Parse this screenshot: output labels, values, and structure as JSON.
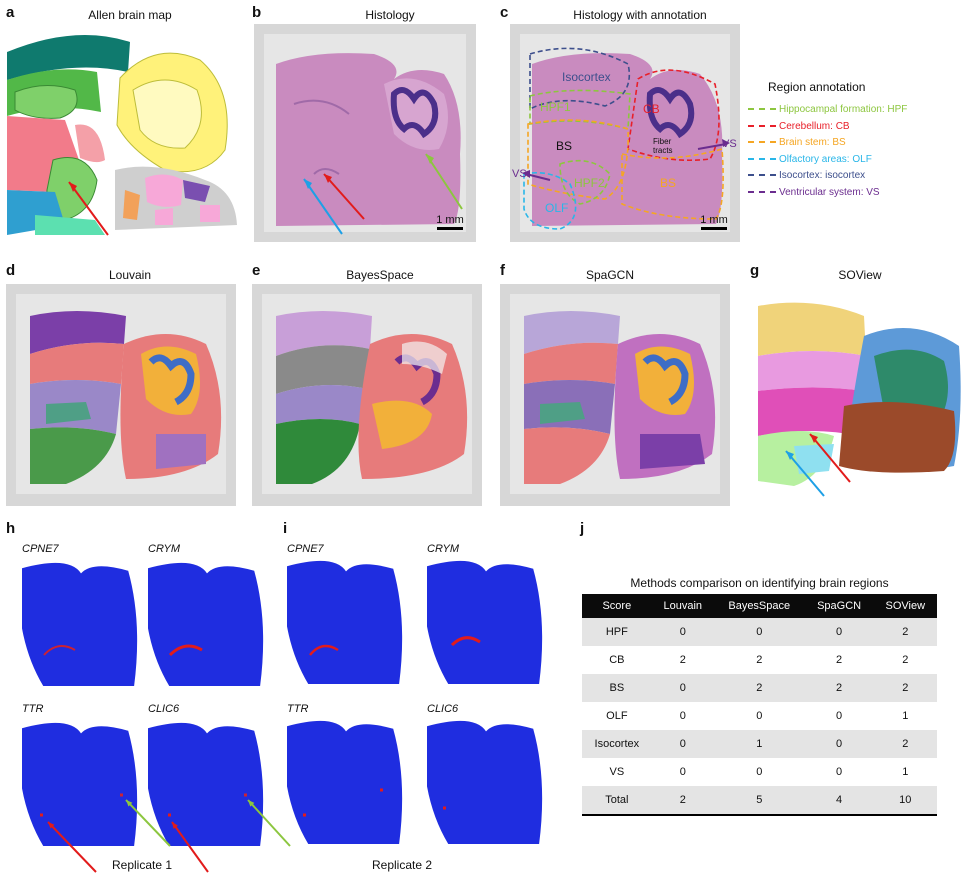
{
  "panels": {
    "a": {
      "letter": "a",
      "title": "Allen brain map"
    },
    "b": {
      "letter": "b",
      "title": "Histology",
      "scale": "1 mm"
    },
    "c": {
      "letter": "c",
      "title": "Histology with annotation",
      "scale": "1 mm",
      "labels": {
        "isocortex": "Isocortex",
        "hpf1": "HPF1",
        "cb": "CB",
        "bs_left": "BS",
        "fiber": "Fiber tracts",
        "vs_left": "VS",
        "vs_right": "VS",
        "hpf2": "HPF2",
        "bs_right": "BS",
        "olf": "OLF"
      }
    },
    "d": {
      "letter": "d",
      "title": "Louvain"
    },
    "e": {
      "letter": "e",
      "title": "BayesSpace"
    },
    "f": {
      "letter": "f",
      "title": "SpaGCN"
    },
    "g": {
      "letter": "g",
      "title": "SOView"
    },
    "h": {
      "letter": "h",
      "genes": [
        "CPNE7",
        "CRYM",
        "TTR",
        "CLIC6"
      ],
      "caption": "Replicate 1"
    },
    "i": {
      "letter": "i",
      "genes": [
        "CPNE7",
        "CRYM",
        "TTR",
        "CLIC6"
      ],
      "caption": "Replicate 2"
    },
    "j": {
      "letter": "j",
      "title": "Methods comparison on identifying brain regions"
    }
  },
  "legend": {
    "title": "Region annotation",
    "items": [
      {
        "text": "Hippocampal formation: HPF",
        "color": "#8dc63f"
      },
      {
        "text": "Cerebellum: CB",
        "color": "#e8202a"
      },
      {
        "text": "Brain stem: BS",
        "color": "#f5a623"
      },
      {
        "text": "Olfactory areas: OLF",
        "color": "#29b6e8"
      },
      {
        "text": "Isocortex: isocortex",
        "color": "#3d4f8c"
      },
      {
        "text": "Ventricular system: VS",
        "color": "#6b2d8f"
      }
    ]
  },
  "table": {
    "headers": [
      "Score",
      "Louvain",
      "BayesSpace",
      "SpaGCN",
      "SOView"
    ],
    "rows": [
      [
        "HPF",
        "0",
        "0",
        "0",
        "2"
      ],
      [
        "CB",
        "2",
        "2",
        "2",
        "2"
      ],
      [
        "BS",
        "0",
        "2",
        "2",
        "2"
      ],
      [
        "OLF",
        "0",
        "0",
        "0",
        "1"
      ],
      [
        "Isocortex",
        "0",
        "1",
        "0",
        "2"
      ],
      [
        "VS",
        "0",
        "0",
        "0",
        "1"
      ],
      [
        "Total",
        "2",
        "5",
        "4",
        "10"
      ]
    ]
  },
  "colors": {
    "spot_blue": "#1f2de0",
    "hist_pink": "#c98bbf",
    "hist_purple": "#5a3f95",
    "arrow_red": "#e21b1b",
    "arrow_blue": "#1ea0e6",
    "arrow_green": "#8cc63f"
  }
}
